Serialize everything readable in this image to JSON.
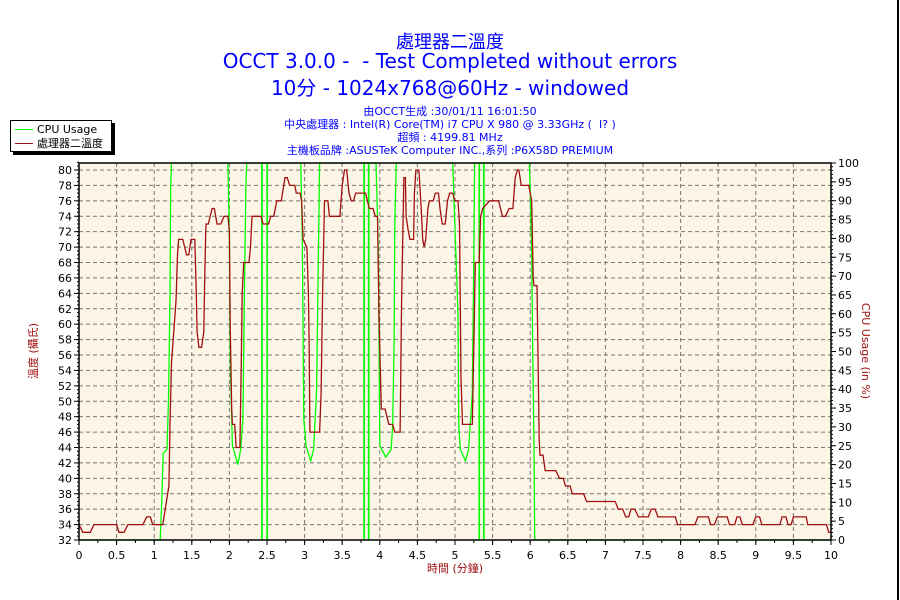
{
  "header": {
    "title": "處理器二溫度",
    "subtitle1": "OCCT 3.0.0 -  - Test Completed without errors",
    "subtitle2": "10分 - 1024x768@60Hz - windowed",
    "info": [
      "由OCCT生成 :30/01/11 16:01:50",
      "中央處理器 : Intel(R) Core(TM) i7 CPU X 980 @ 3.33GHz (  I? )",
      "超頻 : 4199.81 MHz",
      "主機板品牌 :ASUSTeK Computer INC.,系列 :P6X58D PREMIUM"
    ]
  },
  "colors": {
    "cpu": "#00ff00",
    "temp": "#a01010",
    "plot_bg": "#fdf6e6",
    "title": "#0000ff",
    "axis_label": "#a01010"
  },
  "chart_data": {
    "type": "line",
    "title": "處理器二溫度",
    "xlabel": "時間 (分鐘)",
    "ylabel": "溫度 (攝氏)",
    "y2label": "CPU Usage (in %)",
    "xlim": [
      0,
      10
    ],
    "ylim": [
      32,
      80
    ],
    "y2lim": [
      0,
      100
    ],
    "grid": true,
    "legend_position": "top-left",
    "x_ticks": [
      "0",
      "0.5",
      "1",
      "1.5",
      "2",
      "2.5",
      "3",
      "3.5",
      "4",
      "4.5",
      "5",
      "5.5",
      "6",
      "6.5",
      "7",
      "7.5",
      "8",
      "8.5",
      "9",
      "9.5",
      "10"
    ],
    "y_ticks": [
      "32",
      "34",
      "36",
      "38",
      "40",
      "42",
      "44",
      "46",
      "48",
      "50",
      "52",
      "54",
      "56",
      "58",
      "60",
      "62",
      "64",
      "66",
      "68",
      "70",
      "72",
      "74",
      "76",
      "78",
      "80"
    ],
    "y2_ticks": [
      "0",
      "5",
      "10",
      "15",
      "20",
      "25",
      "30",
      "35",
      "40",
      "45",
      "50",
      "55",
      "60",
      "65",
      "70",
      "75",
      "80",
      "85",
      "90",
      "95",
      "100"
    ],
    "series": [
      {
        "name": "CPU Usage",
        "axis": "right",
        "points": [
          [
            0,
            0
          ],
          [
            1.08,
            0
          ],
          [
            1.1,
            10
          ],
          [
            1.12,
            23
          ],
          [
            1.17,
            24
          ],
          [
            1.19,
            37
          ],
          [
            1.21,
            65
          ],
          [
            1.22,
            94
          ],
          [
            1.23,
            100
          ],
          [
            1.98,
            100
          ],
          [
            2.0,
            80
          ],
          [
            2.01,
            48
          ],
          [
            2.04,
            25
          ],
          [
            2.07,
            23
          ],
          [
            2.11,
            20
          ],
          [
            2.15,
            24
          ],
          [
            2.18,
            32
          ],
          [
            2.2,
            65
          ],
          [
            2.22,
            94
          ],
          [
            2.23,
            100
          ],
          [
            2.43,
            100
          ],
          [
            2.43,
            0
          ],
          [
            2.435,
            0
          ],
          [
            2.435,
            100
          ],
          [
            2.5,
            100
          ],
          [
            2.5,
            0
          ],
          [
            2.505,
            0
          ],
          [
            2.505,
            100
          ],
          [
            2.95,
            100
          ],
          [
            2.97,
            80
          ],
          [
            2.99,
            32
          ],
          [
            3.02,
            25
          ],
          [
            3.08,
            21
          ],
          [
            3.12,
            24
          ],
          [
            3.16,
            40
          ],
          [
            3.18,
            70
          ],
          [
            3.2,
            100
          ],
          [
            3.79,
            100
          ],
          [
            3.79,
            0
          ],
          [
            3.795,
            0
          ],
          [
            3.795,
            100
          ],
          [
            3.85,
            100
          ],
          [
            3.85,
            0
          ],
          [
            3.855,
            0
          ],
          [
            3.855,
            100
          ],
          [
            3.95,
            100
          ],
          [
            3.98,
            78
          ],
          [
            4.0,
            25
          ],
          [
            4.08,
            22
          ],
          [
            4.15,
            24
          ],
          [
            4.17,
            30
          ],
          [
            4.19,
            52
          ],
          [
            4.2,
            84
          ],
          [
            4.22,
            100
          ],
          [
            4.97,
            100
          ],
          [
            5.04,
            60
          ],
          [
            5.05,
            30
          ],
          [
            5.07,
            24
          ],
          [
            5.14,
            21
          ],
          [
            5.18,
            24
          ],
          [
            5.23,
            39
          ],
          [
            5.25,
            74
          ],
          [
            5.26,
            100
          ],
          [
            5.32,
            100
          ],
          [
            5.32,
            0
          ],
          [
            5.325,
            0
          ],
          [
            5.325,
            100
          ],
          [
            5.38,
            100
          ],
          [
            5.38,
            0
          ],
          [
            5.385,
            0
          ],
          [
            5.385,
            100
          ],
          [
            5.99,
            100
          ],
          [
            6.02,
            78
          ],
          [
            6.03,
            55
          ],
          [
            6.05,
            25
          ],
          [
            6.06,
            0
          ],
          [
            10,
            0
          ]
        ]
      },
      {
        "name": "處理器二溫度",
        "axis": "left",
        "points": [
          [
            0,
            34
          ],
          [
            0.05,
            33
          ],
          [
            0.15,
            33
          ],
          [
            0.2,
            34
          ],
          [
            0.5,
            34
          ],
          [
            0.53,
            33
          ],
          [
            0.6,
            33
          ],
          [
            0.65,
            34
          ],
          [
            0.85,
            34
          ],
          [
            0.9,
            35
          ],
          [
            0.95,
            35
          ],
          [
            0.98,
            34
          ],
          [
            1.115,
            34
          ],
          [
            1.195,
            39
          ],
          [
            1.21,
            47
          ],
          [
            1.23,
            55
          ],
          [
            1.29,
            63
          ],
          [
            1.31,
            69
          ],
          [
            1.325,
            71
          ],
          [
            1.38,
            71
          ],
          [
            1.43,
            69
          ],
          [
            1.46,
            69
          ],
          [
            1.49,
            71
          ],
          [
            1.54,
            71
          ],
          [
            1.56,
            64
          ],
          [
            1.57,
            59
          ],
          [
            1.595,
            57
          ],
          [
            1.63,
            57
          ],
          [
            1.66,
            59
          ],
          [
            1.67,
            65
          ],
          [
            1.685,
            72
          ],
          [
            1.69,
            73
          ],
          [
            1.72,
            73
          ],
          [
            1.745,
            74
          ],
          [
            1.77,
            75
          ],
          [
            1.8,
            75
          ],
          [
            1.835,
            73
          ],
          [
            1.885,
            73
          ],
          [
            1.93,
            74
          ],
          [
            1.98,
            74
          ],
          [
            2.0,
            72
          ],
          [
            2.01,
            60
          ],
          [
            2.03,
            49
          ],
          [
            2.04,
            47
          ],
          [
            2.07,
            47
          ],
          [
            2.09,
            44
          ],
          [
            2.14,
            44
          ],
          [
            2.16,
            56
          ],
          [
            2.17,
            64
          ],
          [
            2.19,
            68
          ],
          [
            2.26,
            68
          ],
          [
            2.28,
            70
          ],
          [
            2.3,
            74
          ],
          [
            2.42,
            74
          ],
          [
            2.45,
            73
          ],
          [
            2.52,
            73
          ],
          [
            2.55,
            74
          ],
          [
            2.59,
            74
          ],
          [
            2.63,
            76
          ],
          [
            2.69,
            76
          ],
          [
            2.74,
            79
          ],
          [
            2.77,
            79
          ],
          [
            2.8,
            78
          ],
          [
            2.87,
            78
          ],
          [
            2.89,
            77
          ],
          [
            2.94,
            77
          ],
          [
            2.96,
            76
          ],
          [
            2.98,
            71
          ],
          [
            3.03,
            70
          ],
          [
            3.05,
            64
          ],
          [
            3.06,
            58
          ],
          [
            3.07,
            46
          ],
          [
            3.2,
            46
          ],
          [
            3.22,
            51
          ],
          [
            3.24,
            64
          ],
          [
            3.26,
            74
          ],
          [
            3.265,
            76
          ],
          [
            3.31,
            76
          ],
          [
            3.33,
            74
          ],
          [
            3.47,
            74
          ],
          [
            3.5,
            78
          ],
          [
            3.53,
            80
          ],
          [
            3.56,
            80
          ],
          [
            3.59,
            77
          ],
          [
            3.62,
            76
          ],
          [
            3.65,
            76
          ],
          [
            3.68,
            77
          ],
          [
            3.81,
            77
          ],
          [
            3.86,
            75
          ],
          [
            3.91,
            75
          ],
          [
            3.94,
            74
          ],
          [
            3.97,
            74
          ],
          [
            3.99,
            61
          ],
          [
            4.02,
            49
          ],
          [
            4.07,
            49
          ],
          [
            4.12,
            47
          ],
          [
            4.17,
            47
          ],
          [
            4.2,
            46
          ],
          [
            4.27,
            46
          ],
          [
            4.29,
            63
          ],
          [
            4.32,
            79
          ],
          [
            4.34,
            79
          ],
          [
            4.35,
            74
          ],
          [
            4.38,
            72
          ],
          [
            4.4,
            71
          ],
          [
            4.45,
            71
          ],
          [
            4.46,
            77
          ],
          [
            4.48,
            80
          ],
          [
            4.52,
            80
          ],
          [
            4.55,
            75
          ],
          [
            4.57,
            71
          ],
          [
            4.59,
            70
          ],
          [
            4.61,
            71
          ],
          [
            4.64,
            75
          ],
          [
            4.66,
            76
          ],
          [
            4.71,
            76
          ],
          [
            4.74,
            77
          ],
          [
            4.78,
            77
          ],
          [
            4.8,
            75
          ],
          [
            4.83,
            73
          ],
          [
            4.87,
            73
          ],
          [
            4.9,
            76
          ],
          [
            4.93,
            77
          ],
          [
            4.97,
            77
          ],
          [
            5.0,
            76
          ],
          [
            5.04,
            76
          ],
          [
            5.06,
            73
          ],
          [
            5.08,
            53
          ],
          [
            5.1,
            47
          ],
          [
            5.23,
            47
          ],
          [
            5.25,
            57
          ],
          [
            5.27,
            68
          ],
          [
            5.32,
            68
          ],
          [
            5.34,
            74
          ],
          [
            5.37,
            75
          ],
          [
            5.46,
            76
          ],
          [
            5.58,
            76
          ],
          [
            5.63,
            74
          ],
          [
            5.67,
            74
          ],
          [
            5.72,
            75
          ],
          [
            5.77,
            75
          ],
          [
            5.8,
            79
          ],
          [
            5.83,
            80
          ],
          [
            5.85,
            80
          ],
          [
            5.88,
            78
          ],
          [
            5.98,
            78
          ],
          [
            6.02,
            76
          ],
          [
            6.04,
            66
          ],
          [
            6.05,
            65
          ],
          [
            6.09,
            65
          ],
          [
            6.12,
            45
          ],
          [
            6.13,
            43
          ],
          [
            6.17,
            43
          ],
          [
            6.2,
            41
          ],
          [
            6.34,
            41
          ],
          [
            6.39,
            40
          ],
          [
            6.44,
            40
          ],
          [
            6.47,
            39
          ],
          [
            6.53,
            39
          ],
          [
            6.56,
            38
          ],
          [
            6.71,
            38
          ],
          [
            6.75,
            37
          ],
          [
            7.13,
            37
          ],
          [
            7.17,
            36
          ],
          [
            7.23,
            36
          ],
          [
            7.27,
            35
          ],
          [
            7.31,
            35
          ],
          [
            7.34,
            36
          ],
          [
            7.39,
            36
          ],
          [
            7.44,
            35
          ],
          [
            7.57,
            35
          ],
          [
            7.61,
            36
          ],
          [
            7.66,
            36
          ],
          [
            7.7,
            35
          ],
          [
            7.93,
            35
          ],
          [
            7.96,
            34
          ],
          [
            8.19,
            34
          ],
          [
            8.23,
            35
          ],
          [
            8.37,
            35
          ],
          [
            8.4,
            34
          ],
          [
            8.45,
            34
          ],
          [
            8.49,
            35
          ],
          [
            8.62,
            35
          ],
          [
            8.65,
            34
          ],
          [
            8.72,
            34
          ],
          [
            8.75,
            35
          ],
          [
            8.79,
            35
          ],
          [
            8.82,
            34
          ],
          [
            8.96,
            34
          ],
          [
            9.0,
            35
          ],
          [
            9.05,
            35
          ],
          [
            9.08,
            34
          ],
          [
            9.32,
            34
          ],
          [
            9.35,
            35
          ],
          [
            9.4,
            35
          ],
          [
            9.43,
            34
          ],
          [
            9.47,
            34
          ],
          [
            9.5,
            35
          ],
          [
            9.67,
            35
          ],
          [
            9.69,
            34
          ],
          [
            9.94,
            34
          ],
          [
            9.97,
            33
          ],
          [
            10,
            33
          ]
        ]
      }
    ]
  }
}
